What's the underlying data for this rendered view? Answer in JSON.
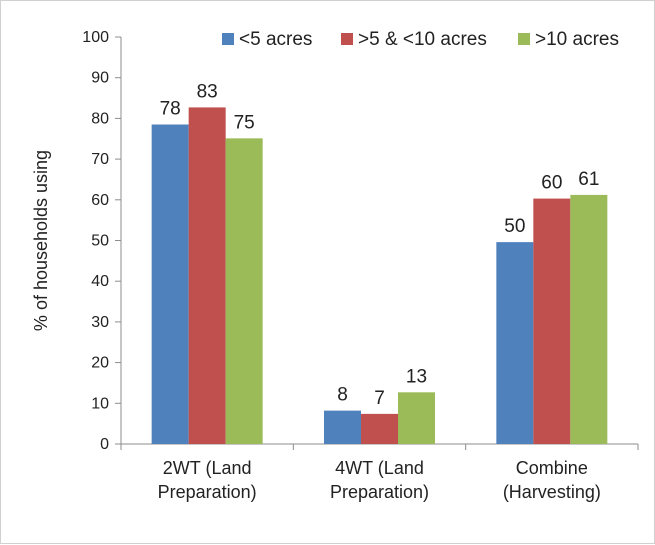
{
  "chart_data": {
    "type": "bar",
    "title": "",
    "xlabel": "",
    "ylabel": "% of households using",
    "ylim": [
      0,
      100
    ],
    "yticks": [
      0,
      10,
      20,
      30,
      40,
      50,
      60,
      70,
      80,
      90,
      100
    ],
    "grid": false,
    "legend_position": "top-right",
    "categories": [
      [
        "2WT (Land",
        "Preparation)"
      ],
      [
        "4WT (Land",
        "Preparation)"
      ],
      [
        "Combine",
        "(Harvesting)"
      ]
    ],
    "series": [
      {
        "name": "<5 acres",
        "color": "#4f81bd",
        "values": [
          78.5,
          8.2,
          49.6
        ],
        "labels": [
          "78",
          "8",
          "50"
        ]
      },
      {
        "name": ">5 & <10 acres",
        "color": "#c0504d",
        "values": [
          82.7,
          7.4,
          60.3
        ],
        "labels": [
          "83",
          "7",
          "60"
        ]
      },
      {
        "name": ">10 acres",
        "color": "#9bbb59",
        "values": [
          75.1,
          12.7,
          61.2
        ],
        "labels": [
          "75",
          "13",
          "61"
        ]
      }
    ]
  }
}
